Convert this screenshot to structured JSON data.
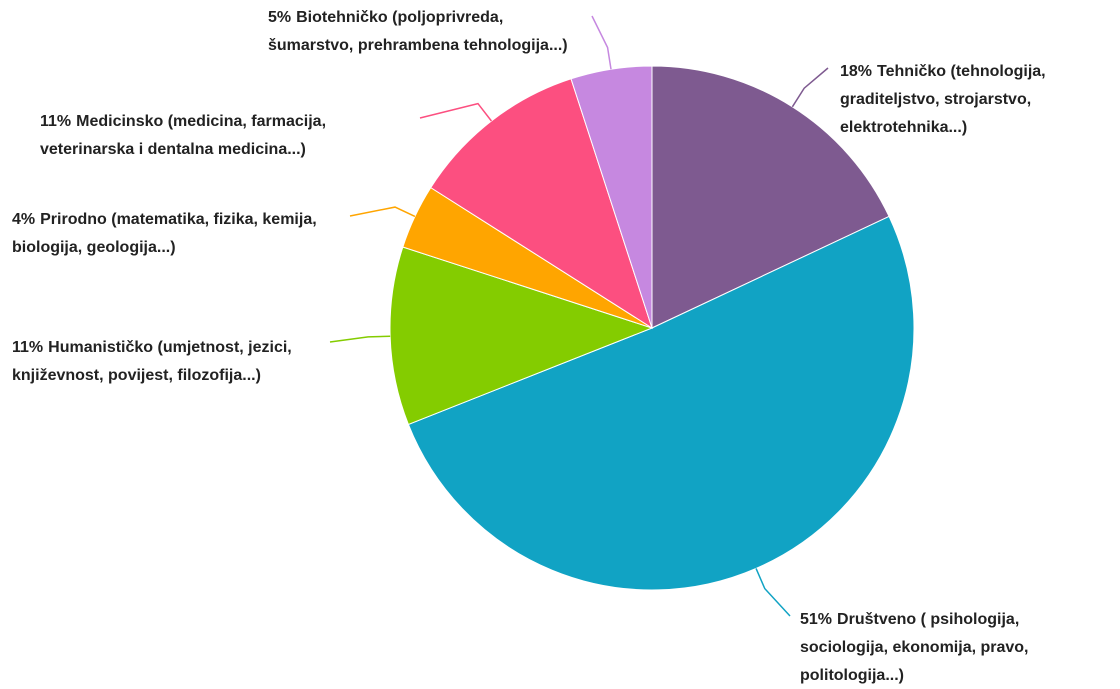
{
  "chart_data": {
    "type": "pie",
    "categories": [
      "Tehničko (tehnologija, graditeljstvo, strojarstvo, elektrotehnika...)",
      "Društveno ( psihologija, sociologija, ekonomija, pravo, politologija...)",
      "Humanističko (umjetnost, jezici, književnost, povijest, filozofija...)",
      "Prirodno (matematika, fizika, kemija, biologija, geologija...)",
      "Medicinsko (medicina, farmacija, veterinarska i dentalna medicina...)",
      "Biotehničko (poljoprivreda, šumarstvo, prehrambena tehnologija...)"
    ],
    "values": [
      18,
      51,
      11,
      4,
      11,
      5
    ],
    "value_labels": [
      "18%",
      "51%",
      "11%",
      "4%",
      "11%",
      "5%"
    ],
    "colors": [
      "#7e5a90",
      "#11a3c4",
      "#84cc00",
      "#ffa500",
      "#fc4f80",
      "#c688e0"
    ]
  }
}
